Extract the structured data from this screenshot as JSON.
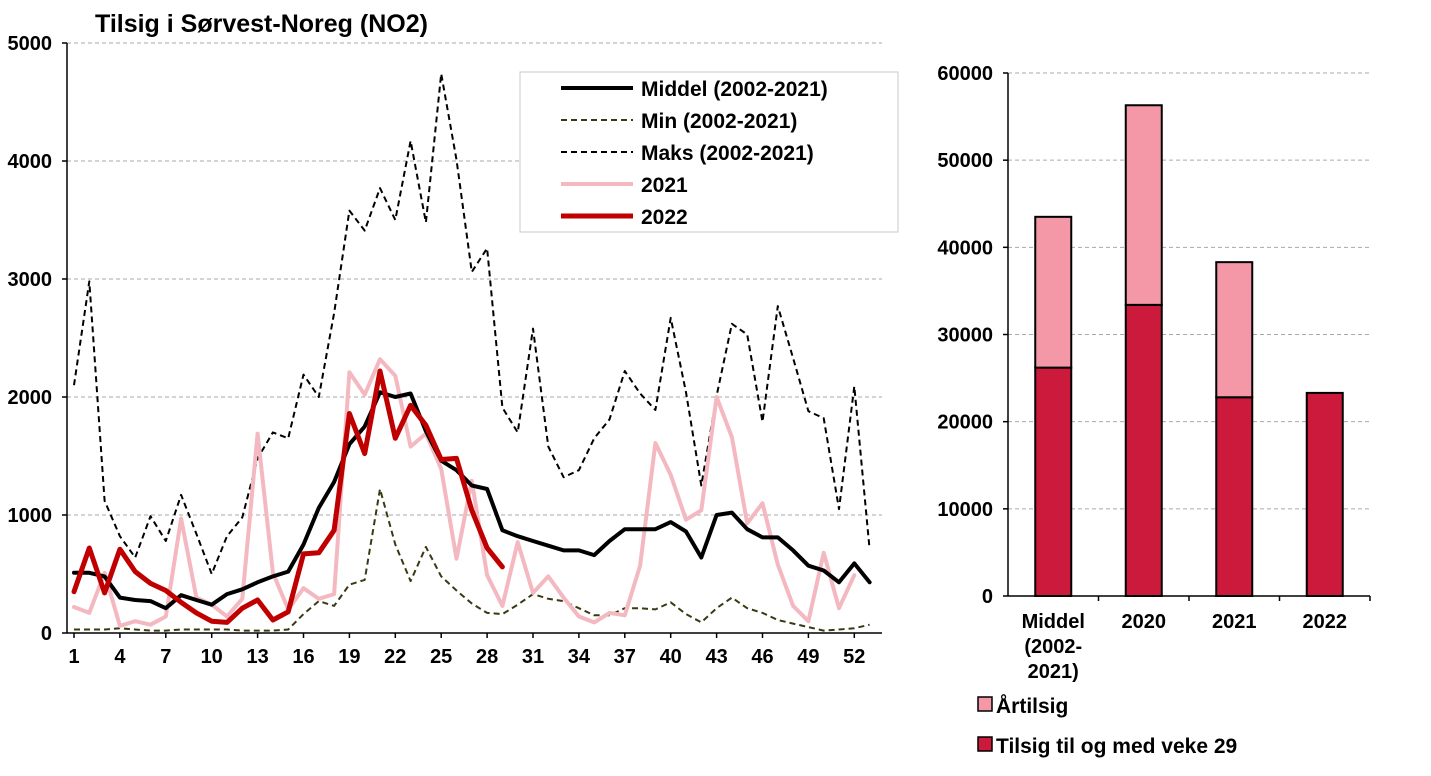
{
  "chart_data": [
    {
      "type": "line",
      "title": "Tilsig i Sørvest-Noreg (NO2)",
      "xlabel": "",
      "ylabel": "",
      "xlim": [
        1,
        53
      ],
      "ylim": [
        0,
        5000
      ],
      "yticks": [
        0,
        1000,
        2000,
        3000,
        4000,
        5000
      ],
      "xticks": [
        1,
        4,
        7,
        10,
        13,
        16,
        19,
        22,
        25,
        28,
        31,
        34,
        37,
        40,
        43,
        46,
        49,
        52
      ],
      "grid": true,
      "legend_position": "top-right",
      "series": [
        {
          "name": "Middel (2002-2021)",
          "color": "#000000",
          "style": "solid",
          "values": [
            510,
            510,
            480,
            300,
            280,
            270,
            210,
            320,
            280,
            240,
            330,
            370,
            430,
            480,
            520,
            750,
            1060,
            1280,
            1600,
            1750,
            2040,
            2000,
            2030,
            1710,
            1460,
            1380,
            1250,
            1220,
            870,
            820,
            780,
            740,
            700,
            700,
            660,
            780,
            880,
            880,
            880,
            940,
            860,
            640,
            1000,
            1020,
            880,
            810,
            810,
            700,
            570,
            530,
            430,
            590,
            430
          ]
        },
        {
          "name": "Min (2002-2021)",
          "color": "#3a3a12",
          "style": "dashed",
          "values": [
            30,
            30,
            30,
            40,
            30,
            20,
            20,
            30,
            30,
            30,
            30,
            20,
            20,
            20,
            30,
            160,
            270,
            230,
            410,
            450,
            1220,
            750,
            440,
            730,
            480,
            360,
            250,
            170,
            160,
            240,
            330,
            290,
            270,
            210,
            150,
            150,
            210,
            210,
            200,
            260,
            160,
            90,
            210,
            300,
            210,
            170,
            110,
            80,
            50,
            20,
            30,
            40,
            70
          ]
        },
        {
          "name": "Maks (2002-2021)",
          "color": "#000000",
          "style": "dashed",
          "values": [
            2100,
            2980,
            1120,
            820,
            640,
            990,
            780,
            1170,
            840,
            500,
            820,
            980,
            1480,
            1700,
            1650,
            2190,
            2000,
            2710,
            3580,
            3410,
            3770,
            3500,
            4170,
            3480,
            4740,
            4010,
            3060,
            3260,
            1910,
            1700,
            2580,
            1580,
            1320,
            1380,
            1650,
            1810,
            2220,
            2030,
            1890,
            2670,
            2040,
            1250,
            2010,
            2620,
            2530,
            1790,
            2770,
            2330,
            1880,
            1820,
            1050,
            2090,
            710
          ]
        },
        {
          "name": "2021",
          "color": "#f4b8c0",
          "style": "solid",
          "values": [
            220,
            170,
            510,
            60,
            100,
            70,
            140,
            970,
            300,
            240,
            140,
            290,
            1690,
            510,
            200,
            380,
            290,
            330,
            2210,
            2020,
            2320,
            2180,
            1580,
            1690,
            1390,
            630,
            1290,
            490,
            230,
            770,
            340,
            480,
            300,
            140,
            90,
            170,
            150,
            570,
            1610,
            1340,
            960,
            1040,
            2000,
            1660,
            930,
            1100,
            580,
            230,
            100,
            680,
            210,
            490
          ]
        },
        {
          "name": "2022",
          "color": "#c00000",
          "style": "solid",
          "values": [
            350,
            720,
            340,
            710,
            520,
            420,
            360,
            260,
            170,
            100,
            90,
            210,
            280,
            110,
            180,
            670,
            680,
            870,
            1860,
            1520,
            2220,
            1650,
            1930,
            1760,
            1470,
            1480,
            1040,
            720,
            560
          ]
        }
      ]
    },
    {
      "type": "bar",
      "stacked": true,
      "title": "",
      "xlabel": "",
      "ylabel": "",
      "categories": [
        "Middel (2002-2021)",
        "2020",
        "2021",
        "2022"
      ],
      "category_label_lines": [
        [
          "Middel",
          "(2002-",
          "2021)"
        ],
        [
          "2020"
        ],
        [
          "2021"
        ],
        [
          "2022"
        ]
      ],
      "ylim": [
        0,
        60000
      ],
      "yticks": [
        0,
        10000,
        20000,
        30000,
        40000,
        50000,
        60000
      ],
      "grid": true,
      "legend_position": "bottom",
      "series": [
        {
          "name": "Tilsig til og med veke  29",
          "color": "#cc1a3c",
          "values": [
            26200,
            33400,
            22800,
            23300
          ]
        },
        {
          "name": "Årtilsig",
          "color": "#f497a6",
          "values": [
            17300,
            22900,
            15500,
            0
          ]
        }
      ]
    }
  ]
}
